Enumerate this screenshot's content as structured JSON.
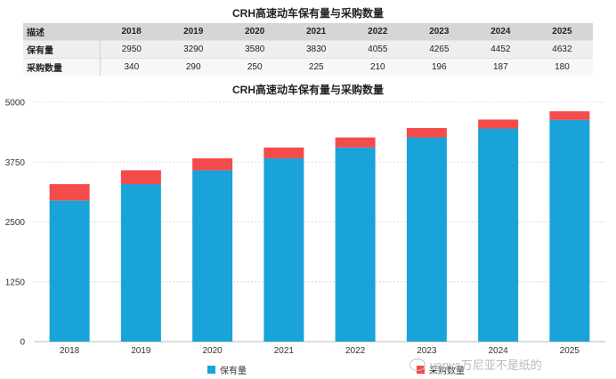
{
  "table": {
    "title": "CRH高速动车保有量与采购数量",
    "header_label": "描述",
    "years": [
      "2018",
      "2019",
      "2020",
      "2021",
      "2022",
      "2023",
      "2024",
      "2025"
    ],
    "rows": [
      {
        "label": "保有量",
        "values": [
          "2950",
          "3290",
          "3580",
          "3830",
          "4055",
          "4265",
          "4452",
          "4632"
        ]
      },
      {
        "label": "采购数量",
        "values": [
          "340",
          "290",
          "250",
          "225",
          "210",
          "196",
          "187",
          "180"
        ]
      }
    ]
  },
  "chart_data": {
    "type": "bar",
    "stacked": true,
    "title": "CRH高速动车保有量与采购数量",
    "categories": [
      "2018",
      "2019",
      "2020",
      "2021",
      "2022",
      "2023",
      "2024",
      "2025"
    ],
    "series": [
      {
        "name": "保有量",
        "color": "#1aa3d9",
        "values": [
          2950,
          3290,
          3580,
          3830,
          4055,
          4265,
          4452,
          4632
        ]
      },
      {
        "name": "采购数量",
        "color": "#f44b4b",
        "values": [
          340,
          290,
          250,
          225,
          210,
          196,
          187,
          180
        ]
      }
    ],
    "yticks": [
      0,
      1250,
      2500,
      3750,
      5000
    ],
    "ytick_labels": [
      "0",
      "1250",
      "2500",
      "3750",
      "5000"
    ],
    "ylim": [
      0,
      5000
    ],
    "xlabel": "",
    "ylabel": "",
    "grid": true,
    "legend_position": "bottom"
  },
  "watermark": "vanya万尼亚不是纸的"
}
